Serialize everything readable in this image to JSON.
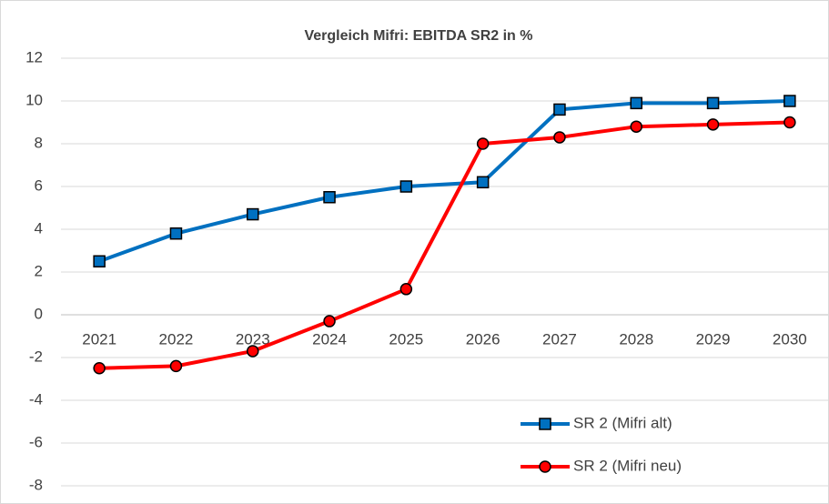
{
  "chart_data": {
    "type": "line",
    "title": "Vergleich Mifri: EBITDA SR2 in %",
    "categories": [
      "2021",
      "2022",
      "2023",
      "2024",
      "2025",
      "2026",
      "2027",
      "2028",
      "2029",
      "2030"
    ],
    "series": [
      {
        "name": "SR 2 (Mifri alt)",
        "color": "#0070c0",
        "marker": "square",
        "values": [
          2.5,
          3.8,
          4.7,
          5.5,
          6.0,
          6.2,
          9.6,
          9.9,
          9.9,
          10.0
        ]
      },
      {
        "name": "SR 2 (Mifri neu)",
        "color": "#ff0000",
        "marker": "circle",
        "values": [
          -2.5,
          -2.4,
          -1.7,
          -0.3,
          1.2,
          8.0,
          8.3,
          8.8,
          8.9,
          9.0
        ]
      }
    ],
    "ylim": [
      -8,
      12
    ],
    "yticks": [
      -8,
      -6,
      -4,
      -2,
      0,
      2,
      4,
      6,
      8,
      10,
      12
    ],
    "grid": true,
    "legend": "lower right"
  }
}
